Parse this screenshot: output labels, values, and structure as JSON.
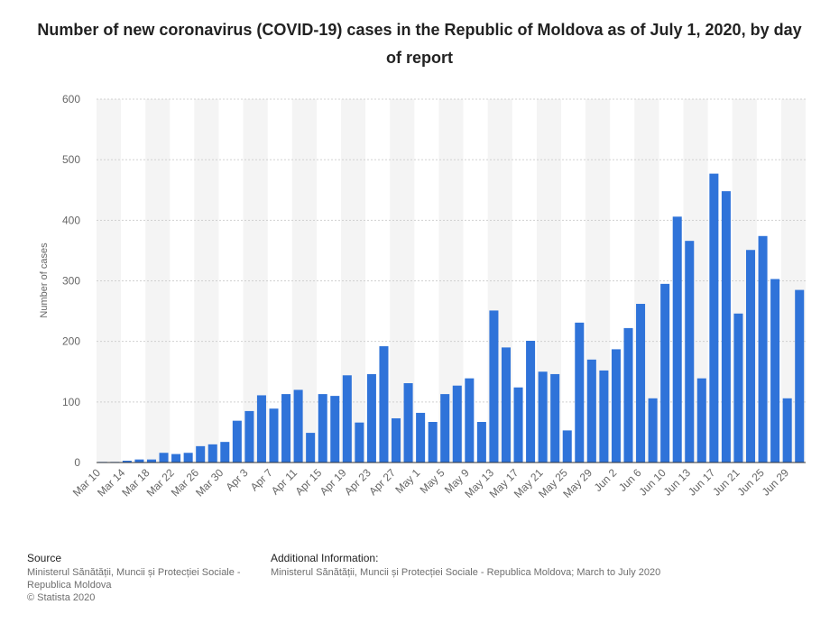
{
  "title": "Number of new coronavirus (COVID-19) cases in the Republic of Moldova as of July 1, 2020, by day of report",
  "footer": {
    "source_heading": "Source",
    "source_line1": "Ministerul Sănătății, Muncii și Protecției Sociale -",
    "source_line2": "Republica Moldova",
    "source_line3": "© Statista 2020",
    "additional_heading": "Additional Information:",
    "additional_text": "Ministerul Sănătății, Muncii și Protecției Sociale - Republica Moldova; March to July 2020"
  },
  "colors": {
    "bar": "#2f73d9",
    "grid": "#d0d0d0",
    "band": "#f4f4f4",
    "tick": "#666666"
  },
  "chart_data": {
    "type": "bar",
    "ylabel": "Number of cases",
    "xlabel": "",
    "ylim": [
      0,
      600
    ],
    "yticks": [
      0,
      100,
      200,
      300,
      400,
      500,
      600
    ],
    "grid": true,
    "x_tick_labels": [
      "Mar 10",
      "Mar 14",
      "Mar 18",
      "Mar 22",
      "Mar 26",
      "Mar 30",
      "Apr 3",
      "Apr 7",
      "Apr 11",
      "Apr 15",
      "Apr 19",
      "Apr 23",
      "Apr 27",
      "May 1",
      "May 5",
      "May 9",
      "May 13",
      "May 17",
      "May 21",
      "May 25",
      "May 29",
      "Jun 2",
      "Jun 6",
      "Jun 10",
      "Jun 13",
      "Jun 17",
      "Jun 21",
      "Jun 25",
      "Jun 29"
    ],
    "values": [
      1,
      1,
      3,
      5,
      5,
      16,
      14,
      16,
      27,
      30,
      34,
      69,
      85,
      111,
      89,
      113,
      120,
      49,
      113,
      110,
      144,
      66,
      146,
      192,
      73,
      131,
      82,
      67,
      113,
      127,
      139,
      67,
      251,
      190,
      124,
      201,
      150,
      146,
      53,
      231,
      170,
      152,
      187,
      222,
      262,
      106,
      295,
      406,
      366,
      139,
      477,
      448,
      246,
      351,
      374,
      303,
      106,
      285
    ]
  }
}
